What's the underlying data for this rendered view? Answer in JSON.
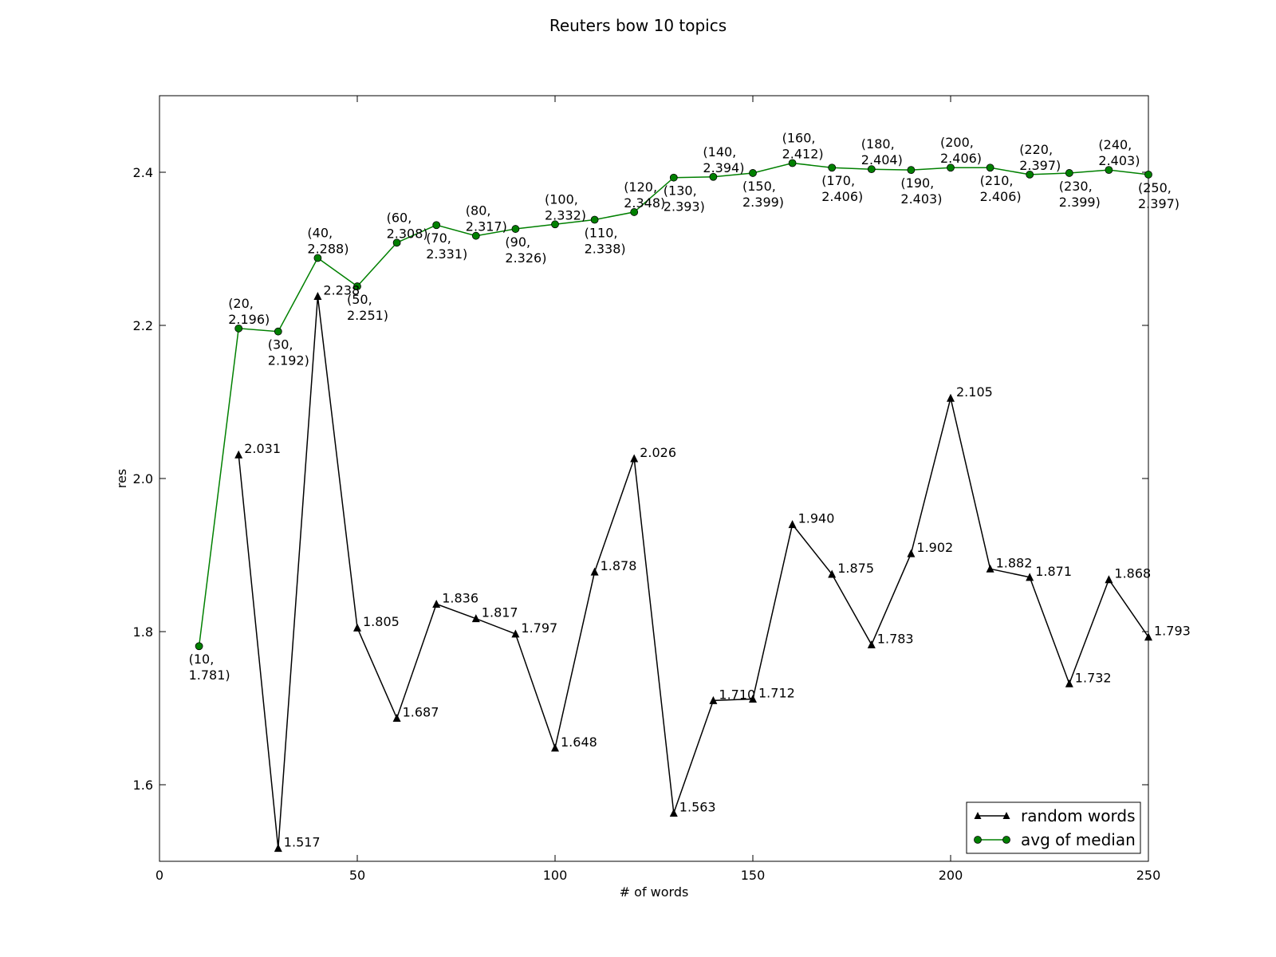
{
  "chart_data": {
    "type": "line",
    "title": "Reuters bow  10 topics",
    "xlabel": "# of words",
    "ylabel": "res",
    "xlim": [
      0,
      250
    ],
    "ylim": [
      1.5,
      2.5
    ],
    "xticks": [
      0,
      50,
      100,
      150,
      200,
      250
    ],
    "yticks": [
      1.6,
      1.8,
      2.0,
      2.2,
      2.4
    ],
    "xtick_labels": [
      "0",
      "50",
      "100",
      "150",
      "200",
      "250"
    ],
    "ytick_labels": [
      "1.6",
      "1.8",
      "2.0",
      "2.2",
      "2.4"
    ],
    "grid": false,
    "legend_position": "bottom-right",
    "series": [
      {
        "name": "random words",
        "color": "#000000",
        "marker": "triangle",
        "x": [
          20,
          30,
          40,
          50,
          60,
          70,
          80,
          90,
          100,
          110,
          120,
          130,
          140,
          150,
          160,
          170,
          180,
          190,
          200,
          210,
          220,
          230,
          240,
          250
        ],
        "y": [
          2.031,
          1.517,
          2.238,
          1.805,
          1.687,
          1.836,
          1.817,
          1.797,
          1.648,
          1.878,
          2.026,
          1.563,
          1.71,
          1.712,
          1.94,
          1.875,
          1.783,
          1.902,
          2.105,
          1.882,
          1.871,
          1.732,
          1.868,
          1.793
        ],
        "labels": [
          "2.031",
          "1.517",
          "2.238",
          "1.805",
          "1.687",
          "1.836",
          "1.817",
          "1.797",
          "1.648",
          "1.878",
          "2.026",
          "1.563",
          "1.710",
          "1.712",
          "1.940",
          "1.875",
          "1.783",
          "1.902",
          "2.105",
          "1.882",
          "1.871",
          "1.732",
          "1.868",
          "1.793"
        ]
      },
      {
        "name": "avg of median",
        "color": "#008000",
        "marker": "circle",
        "x": [
          10,
          20,
          30,
          40,
          50,
          60,
          70,
          80,
          90,
          100,
          110,
          120,
          130,
          140,
          150,
          160,
          170,
          180,
          190,
          200,
          210,
          220,
          230,
          240,
          250
        ],
        "y": [
          1.781,
          2.196,
          2.192,
          2.288,
          2.251,
          2.308,
          2.331,
          2.317,
          2.326,
          2.332,
          2.338,
          2.348,
          2.393,
          2.394,
          2.399,
          2.412,
          2.406,
          2.404,
          2.403,
          2.406,
          2.406,
          2.397,
          2.399,
          2.403,
          2.397
        ],
        "labels": [
          [
            "(10,",
            "1.781)"
          ],
          [
            "(20,",
            "2.196)"
          ],
          [
            "(30,",
            "2.192)"
          ],
          [
            "(40,",
            "2.288)"
          ],
          [
            "(50,",
            "2.251)"
          ],
          [
            "(60,",
            "2.308)"
          ],
          [
            "(70,",
            "2.331)"
          ],
          [
            "(80,",
            "2.317)"
          ],
          [
            "(90,",
            "2.326)"
          ],
          [
            "(100,",
            "2.332)"
          ],
          [
            "(110,",
            "2.338)"
          ],
          [
            "(120,",
            "2.348)"
          ],
          [
            "(130,",
            "2.393)"
          ],
          [
            "(140,",
            "2.394)"
          ],
          [
            "(150,",
            "2.399)"
          ],
          [
            "(160,",
            "2.412)"
          ],
          [
            "(170,",
            "2.406)"
          ],
          [
            "(180,",
            "2.404)"
          ],
          [
            "(190,",
            "2.403)"
          ],
          [
            "(200,",
            "2.406)"
          ],
          [
            "(210,",
            "2.406)"
          ],
          [
            "(220,",
            "2.397)"
          ],
          [
            "(230,",
            "2.399)"
          ],
          [
            "(240,",
            "2.403)"
          ],
          [
            "(250,",
            "2.397)"
          ]
        ],
        "label_side": [
          "below",
          "above",
          "below",
          "above",
          "below",
          "above",
          "below",
          "above",
          "below",
          "above",
          "below",
          "above",
          "below",
          "above",
          "below",
          "above",
          "below",
          "above",
          "below",
          "above",
          "below",
          "above",
          "below",
          "above",
          "below"
        ]
      }
    ]
  }
}
